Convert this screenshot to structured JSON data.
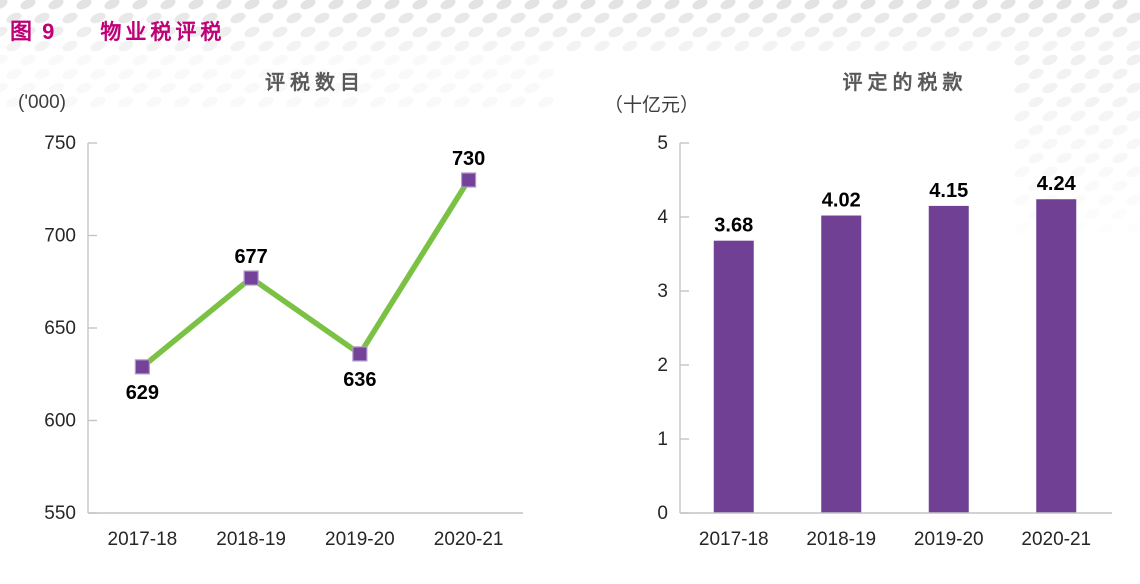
{
  "header": {
    "figure_label": "图 9",
    "title": "物业税评税",
    "accent_color": "#bf0077"
  },
  "chart_data": [
    {
      "type": "line",
      "title": "评税数目",
      "unit_label": "('000)",
      "categories": [
        "2017-18",
        "2018-19",
        "2019-20",
        "2020-21"
      ],
      "values": [
        629,
        677,
        636,
        730
      ],
      "data_labels": [
        "629",
        "677",
        "636",
        "730"
      ],
      "data_label_positions": [
        "below",
        "above",
        "below",
        "above"
      ],
      "ylim": [
        550,
        750
      ],
      "yticks": [
        550,
        600,
        650,
        700,
        750
      ],
      "grid": false,
      "legend": "none",
      "line_color": "#7bc143",
      "marker_color": "#744399",
      "marker_border_color": "#b09ac8"
    },
    {
      "type": "bar",
      "title": "评定的税款",
      "unit_label": "（十亿元）",
      "categories": [
        "2017-18",
        "2018-19",
        "2019-20",
        "2020-21"
      ],
      "values": [
        3.68,
        4.02,
        4.15,
        4.24
      ],
      "data_labels": [
        "3.68",
        "4.02",
        "4.15",
        "4.24"
      ],
      "ylim": [
        0,
        5
      ],
      "yticks": [
        0,
        1,
        2,
        3,
        4,
        5
      ],
      "grid": false,
      "legend": "none",
      "bar_color": "#6f4093"
    }
  ]
}
